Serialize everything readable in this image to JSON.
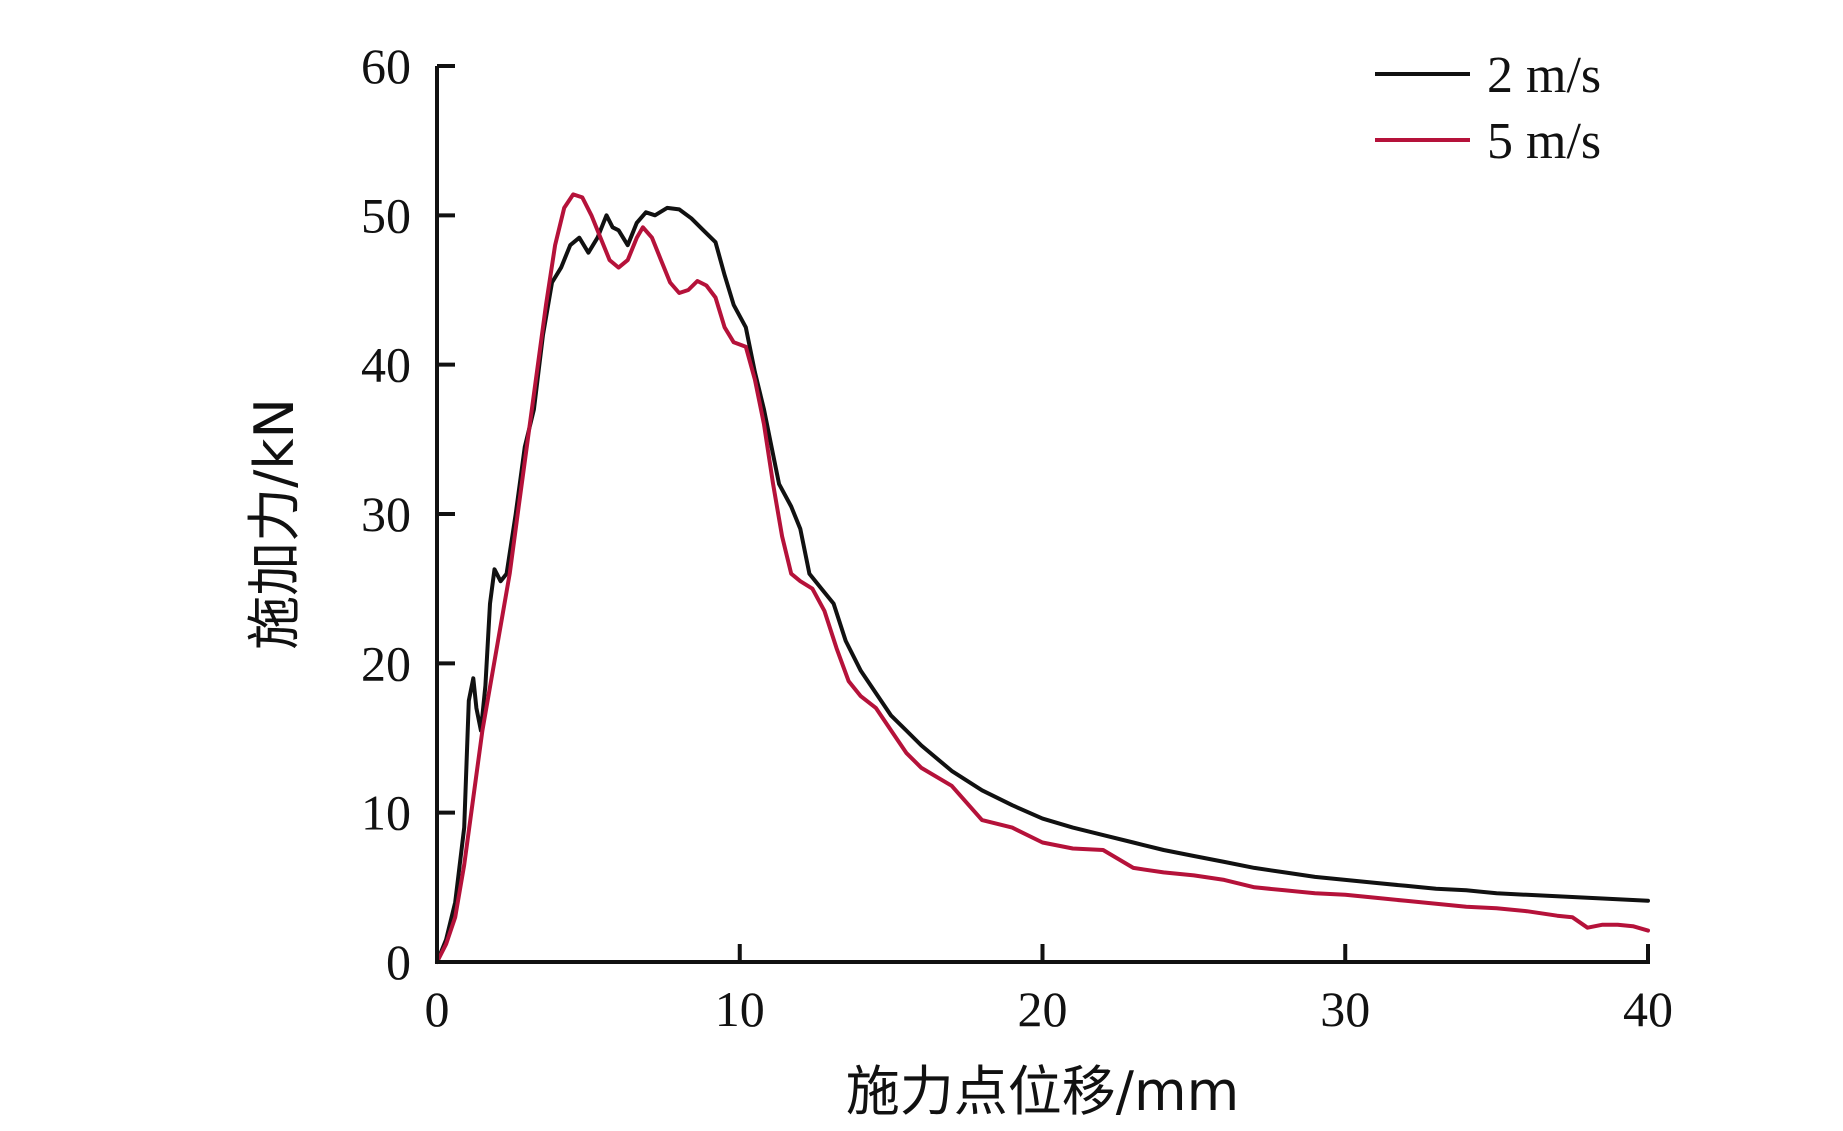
{
  "chart_data": {
    "type": "line",
    "xlabel": "施力点位移/mm",
    "ylabel": "施加力/kN",
    "xlim": [
      0,
      40
    ],
    "ylim": [
      0,
      60
    ],
    "xticks": [
      0,
      10,
      20,
      30,
      40
    ],
    "yticks": [
      0,
      10,
      20,
      30,
      40,
      50,
      60
    ],
    "xtick_labels": [
      "0",
      "10",
      "20",
      "30",
      "40"
    ],
    "ytick_labels": [
      "0",
      "10",
      "20",
      "30",
      "40",
      "50",
      "60"
    ],
    "grid": false,
    "legend_position": "top-right",
    "series": [
      {
        "name": "2 m/s",
        "color": "#111111",
        "points": [
          [
            0,
            0
          ],
          [
            0.3,
            1.5
          ],
          [
            0.6,
            4
          ],
          [
            0.9,
            9
          ],
          [
            1.05,
            17.5
          ],
          [
            1.2,
            19
          ],
          [
            1.3,
            17
          ],
          [
            1.45,
            15.5
          ],
          [
            1.6,
            18.5
          ],
          [
            1.75,
            24
          ],
          [
            1.9,
            26.3
          ],
          [
            2.1,
            25.5
          ],
          [
            2.3,
            26
          ],
          [
            2.6,
            30
          ],
          [
            2.9,
            34.5
          ],
          [
            3.2,
            37
          ],
          [
            3.5,
            42
          ],
          [
            3.8,
            45.5
          ],
          [
            4.1,
            46.5
          ],
          [
            4.4,
            48
          ],
          [
            4.7,
            48.5
          ],
          [
            5.0,
            47.5
          ],
          [
            5.3,
            48.5
          ],
          [
            5.6,
            50
          ],
          [
            5.8,
            49.2
          ],
          [
            6.0,
            49
          ],
          [
            6.3,
            48
          ],
          [
            6.6,
            49.5
          ],
          [
            6.9,
            50.2
          ],
          [
            7.2,
            50
          ],
          [
            7.6,
            50.5
          ],
          [
            8.0,
            50.4
          ],
          [
            8.4,
            49.8
          ],
          [
            8.8,
            49
          ],
          [
            9.2,
            48.2
          ],
          [
            9.5,
            46
          ],
          [
            9.8,
            44
          ],
          [
            10.2,
            42.5
          ],
          [
            10.5,
            39.5
          ],
          [
            10.8,
            37
          ],
          [
            11.0,
            35
          ],
          [
            11.3,
            32
          ],
          [
            11.7,
            30.5
          ],
          [
            12.0,
            29
          ],
          [
            12.3,
            26
          ],
          [
            12.7,
            25
          ],
          [
            13.1,
            24
          ],
          [
            13.5,
            21.5
          ],
          [
            14.0,
            19.5
          ],
          [
            14.5,
            18
          ],
          [
            15,
            16.5
          ],
          [
            15.5,
            15.5
          ],
          [
            16,
            14.5
          ],
          [
            17,
            12.8
          ],
          [
            18,
            11.5
          ],
          [
            19,
            10.5
          ],
          [
            20,
            9.6
          ],
          [
            21,
            9
          ],
          [
            22,
            8.5
          ],
          [
            23,
            8
          ],
          [
            24,
            7.5
          ],
          [
            25,
            7.1
          ],
          [
            26,
            6.7
          ],
          [
            27,
            6.3
          ],
          [
            28,
            6
          ],
          [
            29,
            5.7
          ],
          [
            30,
            5.5
          ],
          [
            31,
            5.3
          ],
          [
            32,
            5.1
          ],
          [
            33,
            4.9
          ],
          [
            34,
            4.8
          ],
          [
            35,
            4.6
          ],
          [
            36,
            4.5
          ],
          [
            37,
            4.4
          ],
          [
            38,
            4.3
          ],
          [
            39,
            4.2
          ],
          [
            40,
            4.1
          ]
        ]
      },
      {
        "name": "5 m/s",
        "color": "#b5123a",
        "points": [
          [
            0,
            0
          ],
          [
            0.3,
            1.2
          ],
          [
            0.6,
            3
          ],
          [
            0.9,
            6.5
          ],
          [
            1.2,
            11
          ],
          [
            1.5,
            15.5
          ],
          [
            1.8,
            19
          ],
          [
            2.1,
            22.5
          ],
          [
            2.4,
            26
          ],
          [
            2.7,
            30.5
          ],
          [
            3.0,
            35
          ],
          [
            3.3,
            39.5
          ],
          [
            3.6,
            44
          ],
          [
            3.9,
            48
          ],
          [
            4.2,
            50.5
          ],
          [
            4.5,
            51.4
          ],
          [
            4.8,
            51.2
          ],
          [
            5.1,
            50
          ],
          [
            5.4,
            48.5
          ],
          [
            5.7,
            47
          ],
          [
            6.0,
            46.5
          ],
          [
            6.3,
            47
          ],
          [
            6.6,
            48.5
          ],
          [
            6.8,
            49.2
          ],
          [
            7.1,
            48.5
          ],
          [
            7.4,
            47
          ],
          [
            7.7,
            45.5
          ],
          [
            8.0,
            44.8
          ],
          [
            8.3,
            45
          ],
          [
            8.6,
            45.6
          ],
          [
            8.9,
            45.3
          ],
          [
            9.2,
            44.5
          ],
          [
            9.5,
            42.5
          ],
          [
            9.8,
            41.5
          ],
          [
            10.2,
            41.2
          ],
          [
            10.5,
            39
          ],
          [
            10.8,
            36
          ],
          [
            11.1,
            32
          ],
          [
            11.4,
            28.5
          ],
          [
            11.7,
            26
          ],
          [
            12.0,
            25.5
          ],
          [
            12.4,
            25
          ],
          [
            12.8,
            23.5
          ],
          [
            13.2,
            21
          ],
          [
            13.6,
            18.8
          ],
          [
            14,
            17.8
          ],
          [
            14.5,
            17
          ],
          [
            15,
            15.5
          ],
          [
            15.5,
            14
          ],
          [
            16,
            13
          ],
          [
            17,
            11.8
          ],
          [
            18,
            9.5
          ],
          [
            19,
            9
          ],
          [
            20,
            8
          ],
          [
            21,
            7.6
          ],
          [
            22,
            7.5
          ],
          [
            23,
            6.3
          ],
          [
            24,
            6
          ],
          [
            25,
            5.8
          ],
          [
            26,
            5.5
          ],
          [
            27,
            5
          ],
          [
            28,
            4.8
          ],
          [
            29,
            4.6
          ],
          [
            30,
            4.5
          ],
          [
            31,
            4.3
          ],
          [
            32,
            4.1
          ],
          [
            33,
            3.9
          ],
          [
            34,
            3.7
          ],
          [
            35,
            3.6
          ],
          [
            36,
            3.4
          ],
          [
            37,
            3.1
          ],
          [
            37.5,
            3
          ],
          [
            38,
            2.3
          ],
          [
            38.5,
            2.5
          ],
          [
            39,
            2.5
          ],
          [
            39.5,
            2.4
          ],
          [
            40,
            2.1
          ]
        ]
      }
    ]
  }
}
